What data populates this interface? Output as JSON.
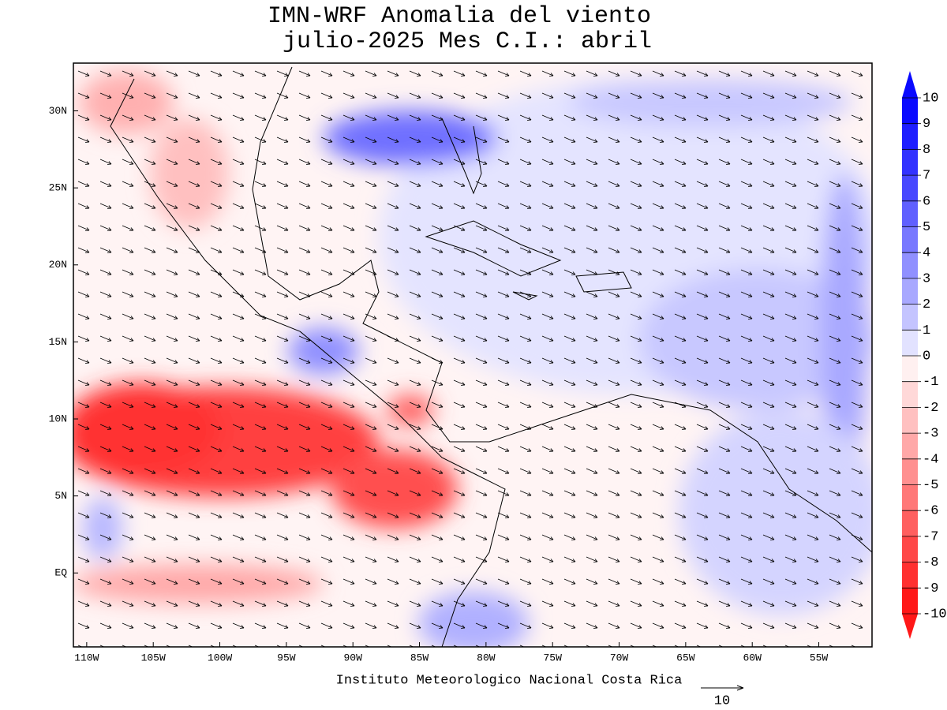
{
  "header": {
    "title": [
      "IMN-WRF Anomalia del viento",
      "julio-2025 Mes C.I.: abril"
    ]
  },
  "map": {
    "xlim": [
      -111,
      -51
    ],
    "ylim": [
      -4.8,
      33.1
    ],
    "xticks": [
      {
        "value": -110,
        "label": "110W"
      },
      {
        "value": -105,
        "label": "105W"
      },
      {
        "value": -100,
        "label": "100W"
      },
      {
        "value": -95,
        "label": "95W"
      },
      {
        "value": -90,
        "label": "90W"
      },
      {
        "value": -85,
        "label": "85W"
      },
      {
        "value": -80,
        "label": "80W"
      },
      {
        "value": -75,
        "label": "75W"
      },
      {
        "value": -70,
        "label": "70W"
      },
      {
        "value": -65,
        "label": "65W"
      },
      {
        "value": -60,
        "label": "60W"
      },
      {
        "value": -55,
        "label": "55W"
      }
    ],
    "yticks": [
      {
        "value": 30,
        "label": "30N"
      },
      {
        "value": 25,
        "label": "25N"
      },
      {
        "value": 20,
        "label": "20N"
      },
      {
        "value": 15,
        "label": "15N"
      },
      {
        "value": 10,
        "label": "10N"
      },
      {
        "value": 5,
        "label": "5N"
      },
      {
        "value": 0,
        "label": "EQ"
      }
    ]
  },
  "colorbar": {
    "levels": [
      10,
      9,
      8,
      7,
      6,
      5,
      4,
      3,
      2,
      1,
      0,
      -1,
      -2,
      -3,
      -4,
      -5,
      -6,
      -7,
      -8,
      -9,
      -10
    ],
    "colors": [
      "#0a0aff",
      "#1e1eff",
      "#3232ff",
      "#4848ff",
      "#6060ff",
      "#7878ff",
      "#9090ff",
      "#a8a8ff",
      "#c4c4ff",
      "#e2e2ff",
      "#fff0f0",
      "#ffd8d8",
      "#ffc0c0",
      "#ffa8a8",
      "#ff9090",
      "#ff7878",
      "#ff6060",
      "#ff4848",
      "#ff3030",
      "#ff1818"
    ]
  },
  "footer": "Instituto Meteorologico Nacional Costa Rica",
  "reference_vector": 10
}
